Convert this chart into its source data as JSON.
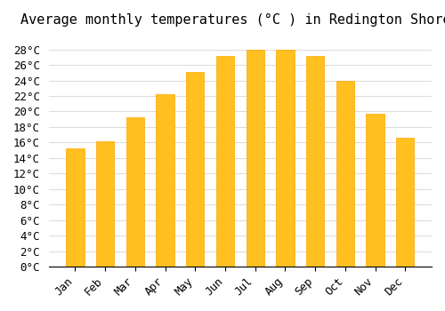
{
  "title": "Average monthly temperatures (°C ) in Redington Shores",
  "months": [
    "Jan",
    "Feb",
    "Mar",
    "Apr",
    "May",
    "Jun",
    "Jul",
    "Aug",
    "Sep",
    "Oct",
    "Nov",
    "Dec"
  ],
  "values": [
    15.3,
    16.2,
    19.3,
    22.2,
    25.1,
    27.2,
    28.0,
    28.0,
    27.2,
    24.0,
    19.7,
    16.6
  ],
  "bar_color": "#FFC020",
  "bar_edge_color": "#FFA500",
  "ylim": [
    0,
    30
  ],
  "yticks": [
    0,
    2,
    4,
    6,
    8,
    10,
    12,
    14,
    16,
    18,
    20,
    22,
    24,
    26,
    28
  ],
  "background_color": "#FFFFFF",
  "grid_color": "#DDDDDD",
  "title_fontsize": 11,
  "tick_fontsize": 9,
  "font_family": "monospace"
}
